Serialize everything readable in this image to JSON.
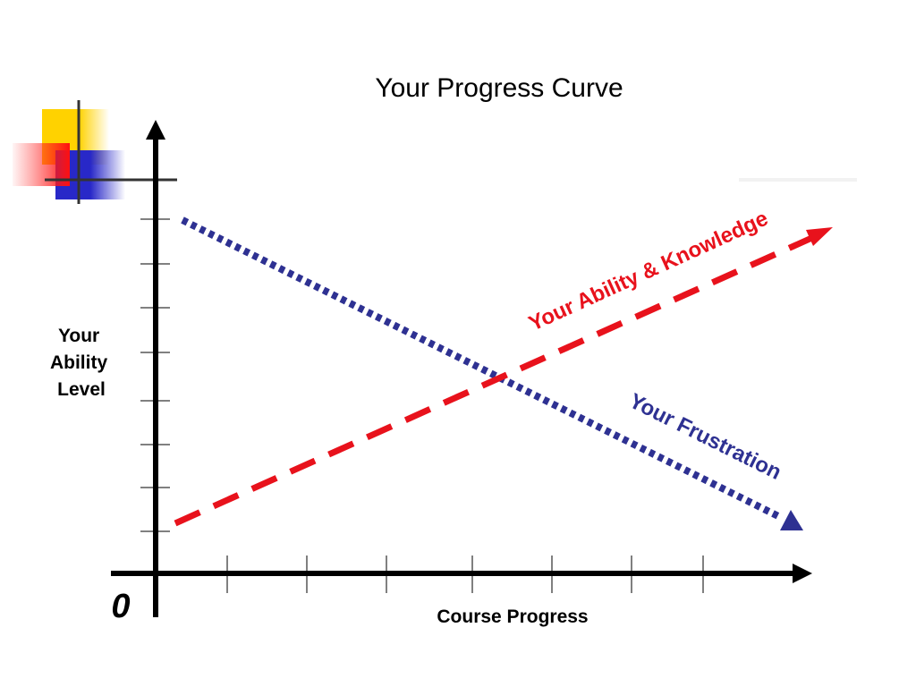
{
  "title": "Your Progress Curve",
  "y_axis": {
    "label_lines": [
      "Your",
      "Ability",
      "Level"
    ]
  },
  "x_axis": {
    "label": "Course Progress"
  },
  "origin_label": "0",
  "curves": {
    "ability": {
      "label": "Your Ability & Knowledge",
      "color": "#e8121c",
      "style": "dashed",
      "direction": "increasing"
    },
    "frustration": {
      "label": "Your Frustration",
      "color": "#2e3192",
      "style": "dotted",
      "direction": "decreasing"
    }
  },
  "decor": {
    "yellow": "#ffd200",
    "red": "#ff2020",
    "blue": "#2828c8",
    "line": "#333333"
  }
}
